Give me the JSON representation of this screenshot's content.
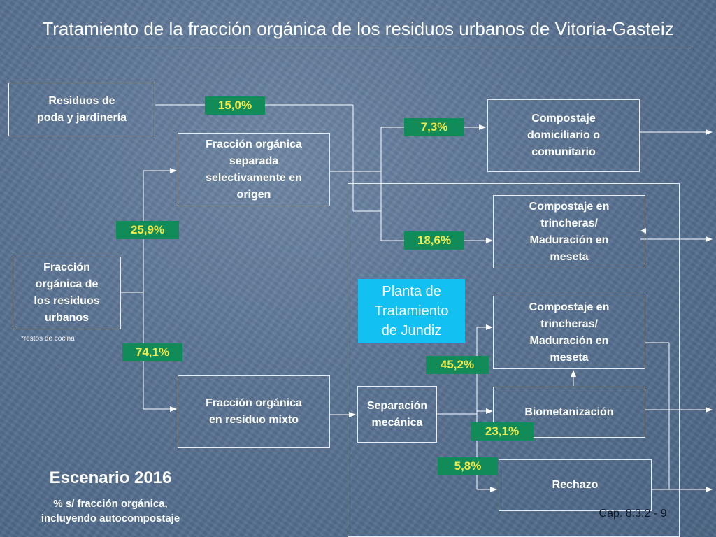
{
  "title": "Tratamiento de la fracción orgánica de los residuos urbanos de Vitoria-Gasteiz",
  "boxes": {
    "poda": "Residuos de\npoda y jardinería",
    "separada": "Fracción orgánica\nseparada\nselectivamente en\norigen",
    "fraccion": "Fracción\norgánica de\nlos residuos\nurbanos",
    "mixto": "Fracción orgánica\nen residuo mixto",
    "domiciliario": "Compostaje\ndomiciliario o\ncomunitario",
    "trincheras1": "Compostaje en\ntrincheras/\nMaduración en\nmeseta",
    "trincheras2": "Compostaje en\ntrincheras/\nMaduración en\nmeseta",
    "biometanizacion": "Biometanización",
    "separacion": "Separación\nmecánica",
    "rechazo": "Rechazo"
  },
  "percentages": {
    "p15": "15,0%",
    "p73": "7,3%",
    "p259": "25,9%",
    "p186": "18,6%",
    "p741": "74,1%",
    "p452": "45,2%",
    "p231": "23,1%",
    "p58": "5,8%"
  },
  "note": "*restos de cocina",
  "plant_label": "Planta de\nTratamiento\nde Jundiz",
  "scenario": {
    "title": "Escenario 2016",
    "subtitle": "% s/ fracción orgánica,\nincluyendo autocompostaje"
  },
  "footer": "Cap. 8.3.2 - 9",
  "colors": {
    "badge_bg": "#118b58",
    "badge_text": "#f2e94a",
    "plant_label_bg": "#12c1f1",
    "lines": "#ffffff"
  }
}
